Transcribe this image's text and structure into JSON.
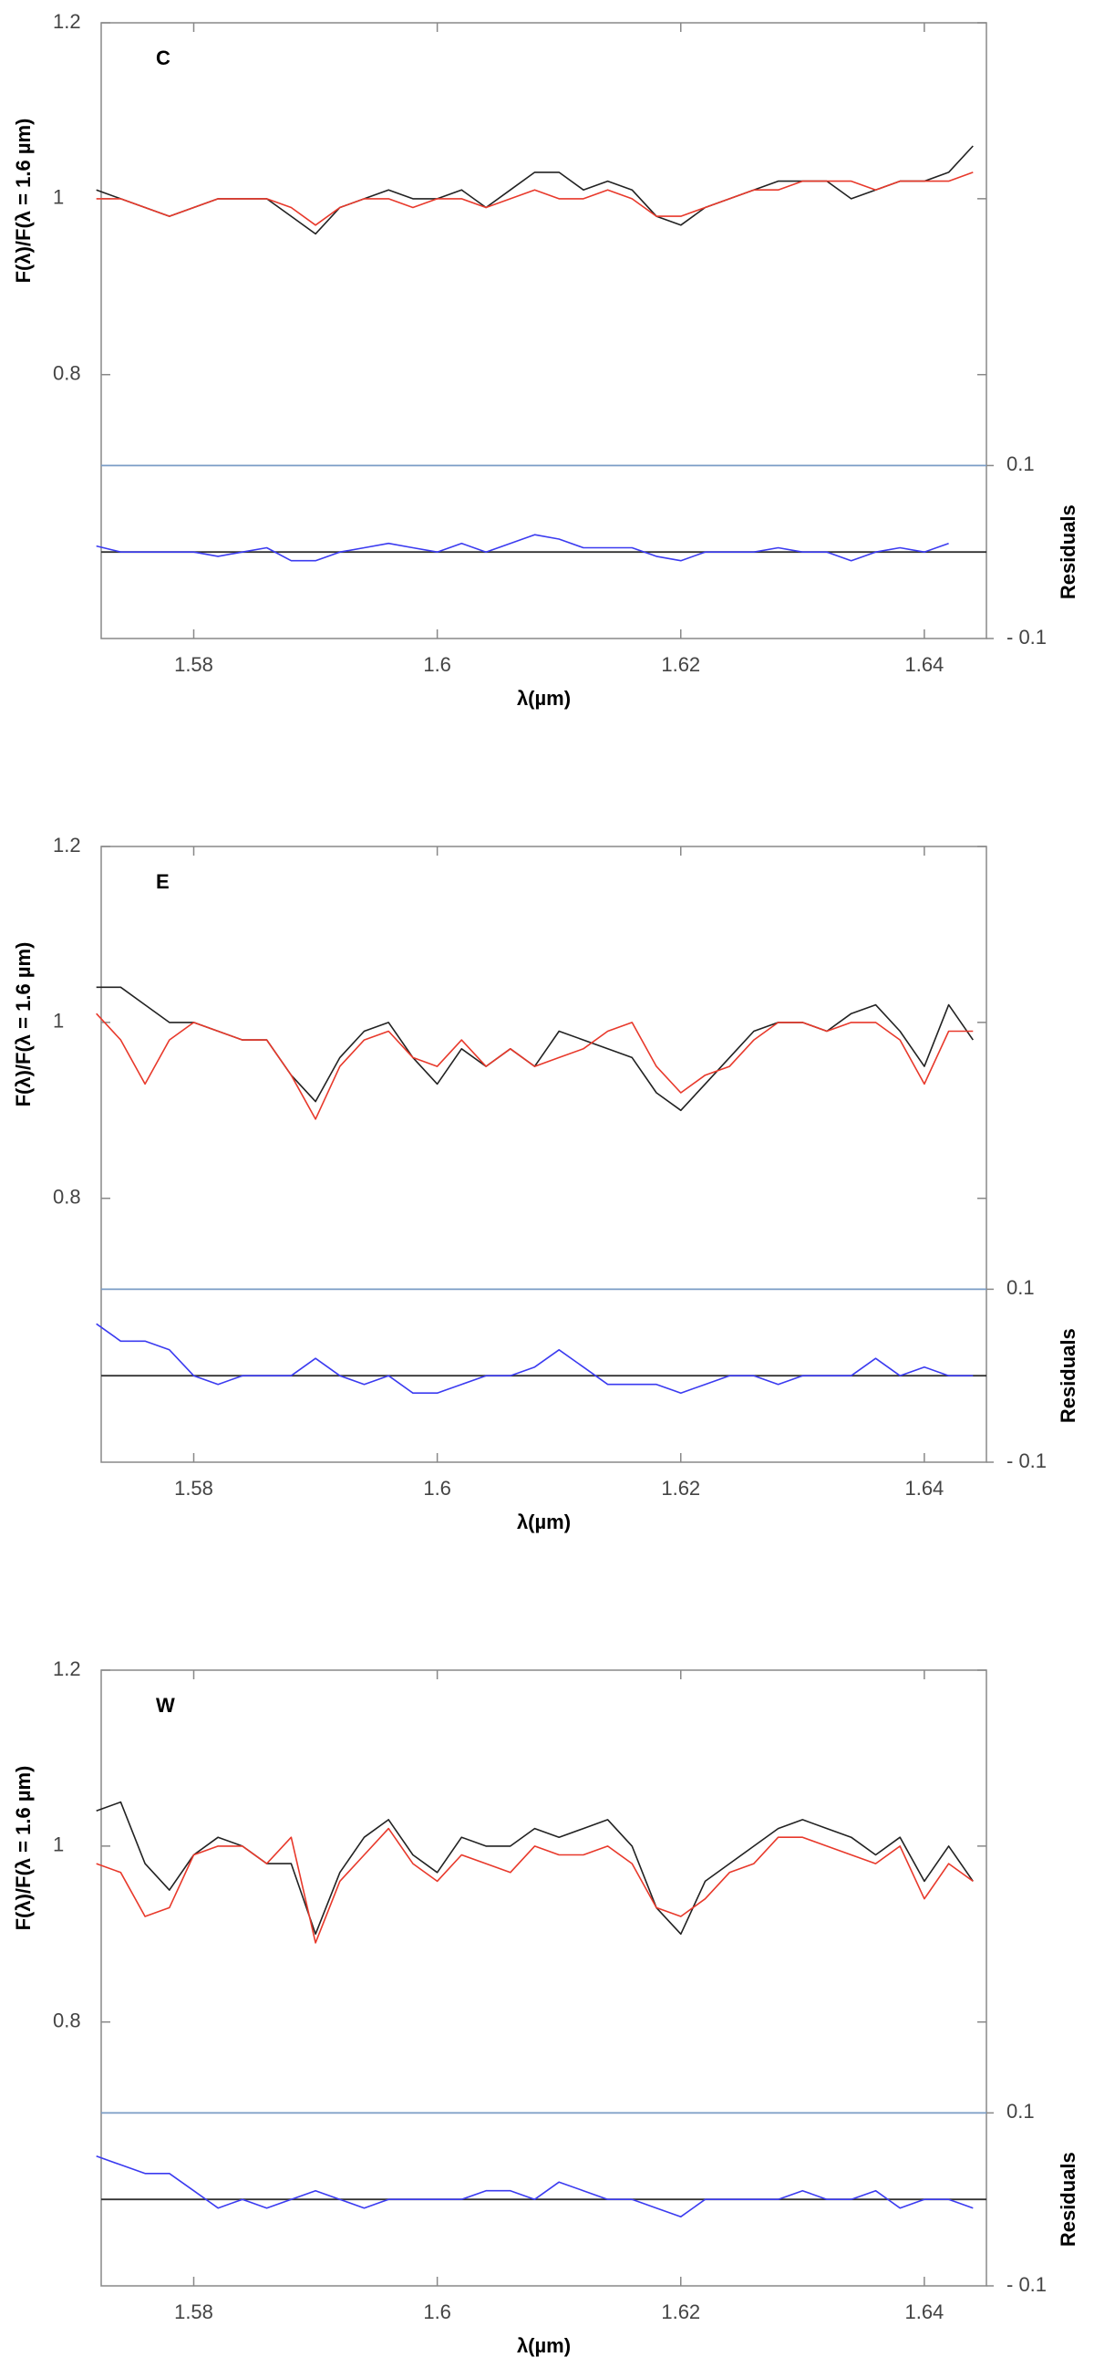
{
  "chart_data": [
    {
      "type": "line",
      "label": "C",
      "xlabel": "λ(µm)",
      "ylabel": "F(λ)/F(λ = 1.6 µm)",
      "y2label": "Residuals",
      "xlim": [
        1.5724,
        1.6451
      ],
      "xticks": [
        1.58,
        1.6,
        1.62,
        1.64
      ],
      "ylim": [
        0.5,
        1.2
      ],
      "yticks": [
        0.8,
        1,
        1.2
      ],
      "y2lim": [
        -0.1,
        0.612
      ],
      "y2ticks": [
        {
          "value": -0.1,
          "label": "- 0.1"
        },
        0.1
      ],
      "hlines": [
        {
          "value": 0.1,
          "color": "#7a9cc6"
        },
        {
          "value": 0,
          "color": "#333333"
        }
      ],
      "x": [
        1.572,
        1.574,
        1.576,
        1.578,
        1.58,
        1.582,
        1.584,
        1.586,
        1.588,
        1.59,
        1.592,
        1.594,
        1.596,
        1.598,
        1.6,
        1.602,
        1.604,
        1.606,
        1.608,
        1.61,
        1.612,
        1.614,
        1.616,
        1.618,
        1.62,
        1.622,
        1.624,
        1.626,
        1.628,
        1.63,
        1.632,
        1.634,
        1.636,
        1.638,
        1.64,
        1.642,
        1.644
      ],
      "series": [
        {
          "color": "#222222",
          "values": [
            1.01,
            1.0,
            0.99,
            0.98,
            0.99,
            1.0,
            1.0,
            1.0,
            0.98,
            0.96,
            0.99,
            1.0,
            1.01,
            1.0,
            1.0,
            1.01,
            0.99,
            1.01,
            1.03,
            1.03,
            1.01,
            1.02,
            1.01,
            0.98,
            0.97,
            0.99,
            1.0,
            1.01,
            1.02,
            1.02,
            1.02,
            1.0,
            1.01,
            1.02,
            1.02,
            1.03,
            1.06
          ]
        },
        {
          "color": "#e8392b",
          "values": [
            1.0,
            1.0,
            0.99,
            0.98,
            0.99,
            1.0,
            1.0,
            1.0,
            0.99,
            0.97,
            0.99,
            1.0,
            1.0,
            0.99,
            1.0,
            1.0,
            0.99,
            1.0,
            1.01,
            1.0,
            1.0,
            1.01,
            1.0,
            0.98,
            0.98,
            0.99,
            1.0,
            1.01,
            1.01,
            1.02,
            1.02,
            1.02,
            1.01,
            1.02,
            1.02,
            1.02,
            1.03
          ]
        },
        {
          "color": "#3b3bf0",
          "axis": "y2",
          "values": [
            0.007,
            0.0,
            0.0,
            0.0,
            0.0,
            -0.005,
            0.0,
            0.005,
            -0.01,
            -0.01,
            0.0,
            0.005,
            0.01,
            0.005,
            0.0,
            0.01,
            0.0,
            0.01,
            0.02,
            0.015,
            0.005,
            0.005,
            0.005,
            -0.005,
            -0.01,
            0.0,
            0.0,
            0.0,
            0.005,
            0.0,
            0.0,
            -0.01,
            0.0,
            0.005,
            0.0,
            0.01,
            null
          ]
        }
      ]
    },
    {
      "type": "line",
      "label": "E",
      "xlabel": "λ(µm)",
      "ylabel": "F(λ)/F(λ = 1.6 µm)",
      "y2label": "Residuals",
      "xlim": [
        1.5724,
        1.6451
      ],
      "xticks": [
        1.58,
        1.6,
        1.62,
        1.64
      ],
      "ylim": [
        0.5,
        1.2
      ],
      "yticks": [
        0.8,
        1,
        1.2
      ],
      "y2lim": [
        -0.1,
        0.612
      ],
      "y2ticks": [
        {
          "value": -0.1,
          "label": "- 0.1"
        },
        0.1
      ],
      "hlines": [
        {
          "value": 0.1,
          "color": "#7a9cc6"
        },
        {
          "value": 0,
          "color": "#333333"
        }
      ],
      "x": [
        1.572,
        1.574,
        1.576,
        1.578,
        1.58,
        1.582,
        1.584,
        1.586,
        1.588,
        1.59,
        1.592,
        1.594,
        1.596,
        1.598,
        1.6,
        1.602,
        1.604,
        1.606,
        1.608,
        1.61,
        1.612,
        1.614,
        1.616,
        1.618,
        1.62,
        1.622,
        1.624,
        1.626,
        1.628,
        1.63,
        1.632,
        1.634,
        1.636,
        1.638,
        1.64,
        1.642,
        1.644
      ],
      "series": [
        {
          "color": "#222222",
          "values": [
            1.04,
            1.04,
            1.02,
            1.0,
            1.0,
            0.99,
            0.98,
            0.98,
            0.94,
            0.91,
            0.96,
            0.99,
            1.0,
            0.96,
            0.93,
            0.97,
            0.95,
            0.97,
            0.95,
            0.99,
            0.98,
            0.97,
            0.96,
            0.92,
            0.9,
            0.93,
            0.96,
            0.99,
            1.0,
            1.0,
            0.99,
            1.01,
            1.02,
            0.99,
            0.95,
            1.02,
            0.98
          ]
        },
        {
          "color": "#e8392b",
          "values": [
            1.01,
            0.98,
            0.93,
            0.98,
            1.0,
            0.99,
            0.98,
            0.98,
            0.94,
            0.89,
            0.95,
            0.98,
            0.99,
            0.96,
            0.95,
            0.98,
            0.95,
            0.97,
            0.95,
            0.96,
            0.97,
            0.99,
            1.0,
            0.95,
            0.92,
            0.94,
            0.95,
            0.98,
            1.0,
            1.0,
            0.99,
            1.0,
            1.0,
            0.98,
            0.93,
            0.99,
            0.99
          ]
        },
        {
          "color": "#3b3bf0",
          "axis": "y2",
          "values": [
            0.06,
            0.04,
            0.04,
            0.03,
            0.0,
            -0.01,
            0.0,
            0.0,
            0.0,
            0.02,
            0.0,
            -0.01,
            0.0,
            -0.02,
            -0.02,
            -0.01,
            0.0,
            0.0,
            0.01,
            0.03,
            0.01,
            -0.01,
            -0.01,
            -0.01,
            -0.02,
            -0.01,
            0.0,
            0.0,
            -0.01,
            0.0,
            0.0,
            0.0,
            0.02,
            0.0,
            0.01,
            0.0,
            0.0
          ]
        }
      ]
    },
    {
      "type": "line",
      "label": "W",
      "xlabel": "λ(µm)",
      "ylabel": "F(λ)/F(λ = 1.6 µm)",
      "y2label": "Residuals",
      "xlim": [
        1.5724,
        1.6451
      ],
      "xticks": [
        1.58,
        1.6,
        1.62,
        1.64
      ],
      "ylim": [
        0.5,
        1.2
      ],
      "yticks": [
        0.8,
        1,
        1.2
      ],
      "y2lim": [
        -0.1,
        0.612
      ],
      "y2ticks": [
        {
          "value": -0.1,
          "label": "- 0.1"
        },
        0.1
      ],
      "hlines": [
        {
          "value": 0.1,
          "color": "#7a9cc6"
        },
        {
          "value": 0,
          "color": "#333333"
        }
      ],
      "x": [
        1.572,
        1.574,
        1.576,
        1.578,
        1.58,
        1.582,
        1.584,
        1.586,
        1.588,
        1.59,
        1.592,
        1.594,
        1.596,
        1.598,
        1.6,
        1.602,
        1.604,
        1.606,
        1.608,
        1.61,
        1.612,
        1.614,
        1.616,
        1.618,
        1.62,
        1.622,
        1.624,
        1.626,
        1.628,
        1.63,
        1.632,
        1.634,
        1.636,
        1.638,
        1.64,
        1.642,
        1.644
      ],
      "series": [
        {
          "color": "#222222",
          "values": [
            1.04,
            1.05,
            0.98,
            0.95,
            0.99,
            1.01,
            1.0,
            0.98,
            0.98,
            0.9,
            0.97,
            1.01,
            1.03,
            0.99,
            0.97,
            1.01,
            1.0,
            1.0,
            1.02,
            1.01,
            1.02,
            1.03,
            1.0,
            0.93,
            0.9,
            0.96,
            0.98,
            1.0,
            1.02,
            1.03,
            1.02,
            1.01,
            0.99,
            1.01,
            0.96,
            1.0,
            0.96
          ]
        },
        {
          "color": "#e8392b",
          "values": [
            0.98,
            0.97,
            0.92,
            0.93,
            0.99,
            1.0,
            1.0,
            0.98,
            1.01,
            0.89,
            0.96,
            0.99,
            1.02,
            0.98,
            0.96,
            0.99,
            0.98,
            0.97,
            1.0,
            0.99,
            0.99,
            1.0,
            0.98,
            0.93,
            0.92,
            0.94,
            0.97,
            0.98,
            1.01,
            1.01,
            1.0,
            0.99,
            0.98,
            1.0,
            0.94,
            0.98,
            0.96
          ]
        },
        {
          "color": "#3b3bf0",
          "axis": "y2",
          "values": [
            0.05,
            0.04,
            0.03,
            0.03,
            0.01,
            -0.01,
            0.0,
            -0.01,
            0.0,
            0.01,
            0.0,
            -0.01,
            0.0,
            0.0,
            0.0,
            0.0,
            0.01,
            0.01,
            0.0,
            0.02,
            0.01,
            0.0,
            0.0,
            -0.01,
            -0.02,
            0.0,
            0.0,
            0.0,
            0.0,
            0.01,
            0.0,
            0.0,
            0.01,
            -0.01,
            0.0,
            0.0,
            -0.01
          ]
        }
      ]
    }
  ]
}
